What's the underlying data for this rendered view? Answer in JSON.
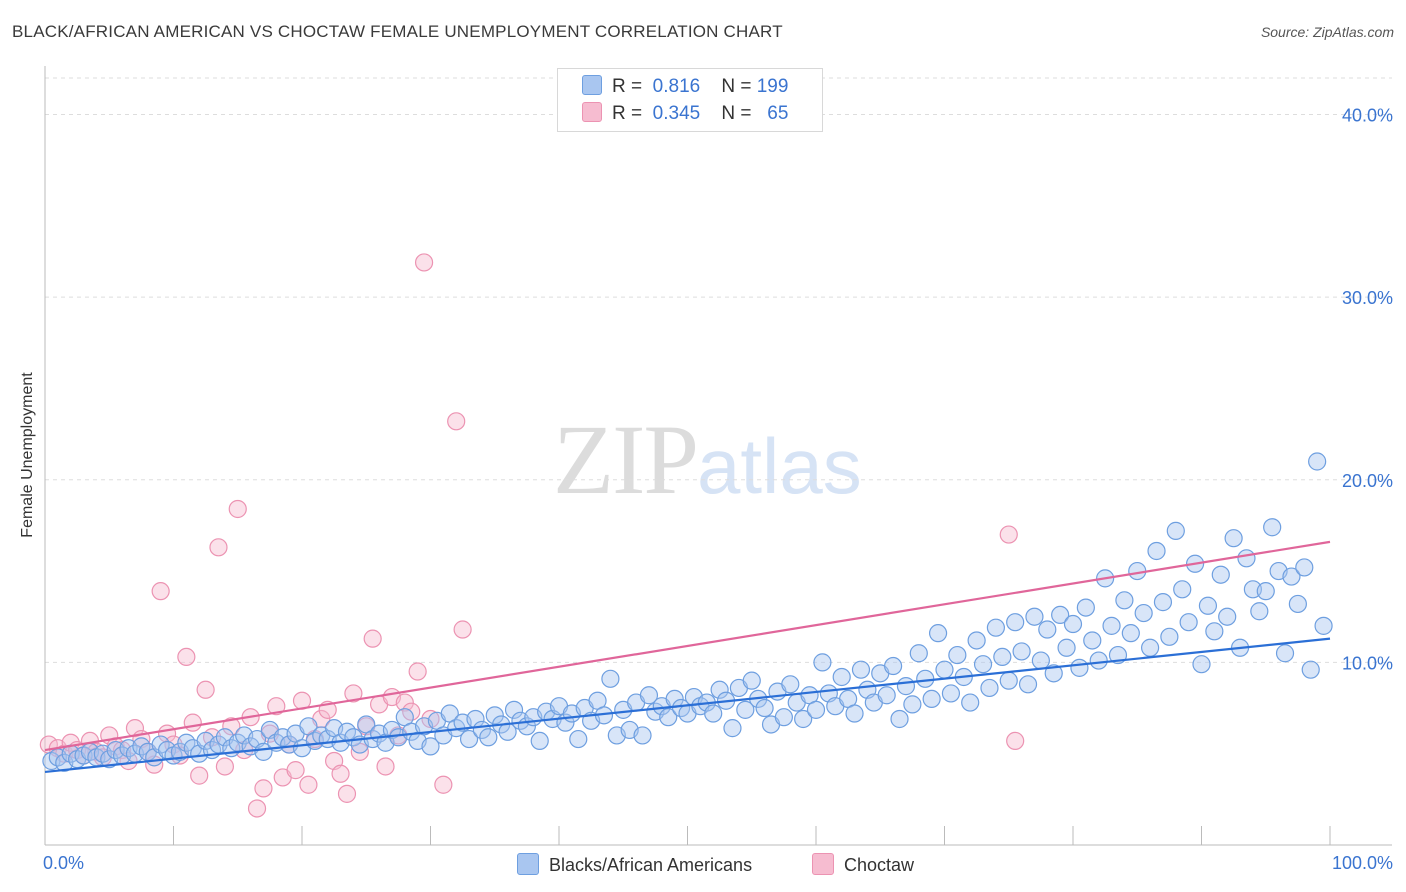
{
  "title": "BLACK/AFRICAN AMERICAN VS CHOCTAW FEMALE UNEMPLOYMENT CORRELATION CHART",
  "source": "Source: ZipAtlas.com",
  "watermark": {
    "zip": "ZIP",
    "atlas": "atlas"
  },
  "legend_top": {
    "rows": [
      {
        "r_label": "R =",
        "r_value": "0.816",
        "n_label": "N =",
        "n_value": "199"
      },
      {
        "r_label": "R =",
        "r_value": "0.345",
        "n_label": "N =",
        "n_value": "65"
      }
    ]
  },
  "colors": {
    "blue_fill": "#a9c6f0",
    "blue_stroke": "#6e9fe0",
    "blue_line": "#2b6fd6",
    "pink_fill": "#f6bcd0",
    "pink_stroke": "#ec93b2",
    "pink_line": "#e0669a",
    "grid": "#dddddd",
    "tick_label": "#3a74d0"
  },
  "chart_data": {
    "type": "scatter",
    "title": "BLACK/AFRICAN AMERICAN VS CHOCTAW FEMALE UNEMPLOYMENT CORRELATION CHART",
    "xlabel": "",
    "ylabel": "Female Unemployment",
    "xlim": [
      0,
      100
    ],
    "ylim": [
      0,
      42
    ],
    "x_tick_labels": [
      "0.0%",
      "100.0%"
    ],
    "y_ticks": [
      10,
      20,
      30,
      40
    ],
    "y_tick_labels": [
      "10.0%",
      "20.0%",
      "30.0%",
      "40.0%"
    ],
    "grid": "horizontal dashed",
    "legend_position": "bottom",
    "series": [
      {
        "name": "Blacks/African Americans",
        "r": 0.816,
        "n": 199,
        "trend": {
          "x": [
            0,
            100
          ],
          "y": [
            4.0,
            11.3
          ]
        },
        "points": [
          [
            0.5,
            4.6
          ],
          [
            1,
            4.8
          ],
          [
            1.5,
            4.5
          ],
          [
            2,
            5.0
          ],
          [
            2.5,
            4.7
          ],
          [
            3,
            4.9
          ],
          [
            3.5,
            5.1
          ],
          [
            4,
            4.8
          ],
          [
            4.5,
            5.0
          ],
          [
            5,
            4.7
          ],
          [
            5.5,
            5.2
          ],
          [
            6,
            4.9
          ],
          [
            6.5,
            5.3
          ],
          [
            7,
            5.0
          ],
          [
            7.5,
            5.4
          ],
          [
            8,
            5.1
          ],
          [
            8.5,
            4.8
          ],
          [
            9,
            5.5
          ],
          [
            9.5,
            5.2
          ],
          [
            10,
            4.9
          ],
          [
            10.5,
            5.1
          ],
          [
            11,
            5.6
          ],
          [
            11.5,
            5.3
          ],
          [
            12,
            5.0
          ],
          [
            12.5,
            5.7
          ],
          [
            13,
            5.2
          ],
          [
            13.5,
            5.5
          ],
          [
            14,
            5.9
          ],
          [
            14.5,
            5.3
          ],
          [
            15,
            5.6
          ],
          [
            15.5,
            6.0
          ],
          [
            16,
            5.4
          ],
          [
            16.5,
            5.8
          ],
          [
            17,
            5.1
          ],
          [
            17.5,
            6.3
          ],
          [
            18,
            5.6
          ],
          [
            18.5,
            5.9
          ],
          [
            19,
            5.5
          ],
          [
            19.5,
            6.1
          ],
          [
            20,
            5.3
          ],
          [
            20.5,
            6.5
          ],
          [
            21,
            5.7
          ],
          [
            21.5,
            6.0
          ],
          [
            22,
            5.8
          ],
          [
            22.5,
            6.4
          ],
          [
            23,
            5.6
          ],
          [
            23.5,
            6.2
          ],
          [
            24,
            5.9
          ],
          [
            24.5,
            5.5
          ],
          [
            25,
            6.6
          ],
          [
            25.5,
            5.8
          ],
          [
            26,
            6.1
          ],
          [
            26.5,
            5.6
          ],
          [
            27,
            6.3
          ],
          [
            27.5,
            5.9
          ],
          [
            28,
            7.0
          ],
          [
            28.5,
            6.2
          ],
          [
            29,
            5.7
          ],
          [
            29.5,
            6.5
          ],
          [
            30,
            5.4
          ],
          [
            30.5,
            6.8
          ],
          [
            31,
            6.0
          ],
          [
            31.5,
            7.2
          ],
          [
            32,
            6.4
          ],
          [
            32.5,
            6.7
          ],
          [
            33,
            5.8
          ],
          [
            33.5,
            6.9
          ],
          [
            34,
            6.3
          ],
          [
            34.5,
            5.9
          ],
          [
            35,
            7.1
          ],
          [
            35.5,
            6.6
          ],
          [
            36,
            6.2
          ],
          [
            36.5,
            7.4
          ],
          [
            37,
            6.8
          ],
          [
            37.5,
            6.5
          ],
          [
            38,
            7.0
          ],
          [
            38.5,
            5.7
          ],
          [
            39,
            7.3
          ],
          [
            39.5,
            6.9
          ],
          [
            40,
            7.6
          ],
          [
            40.5,
            6.7
          ],
          [
            41,
            7.2
          ],
          [
            41.5,
            5.8
          ],
          [
            42,
            7.5
          ],
          [
            42.5,
            6.8
          ],
          [
            43,
            7.9
          ],
          [
            43.5,
            7.1
          ],
          [
            44,
            9.1
          ],
          [
            44.5,
            6.0
          ],
          [
            45,
            7.4
          ],
          [
            45.5,
            6.3
          ],
          [
            46,
            7.8
          ],
          [
            46.5,
            6.0
          ],
          [
            47,
            8.2
          ],
          [
            47.5,
            7.3
          ],
          [
            48,
            7.6
          ],
          [
            48.5,
            7.0
          ],
          [
            49,
            8.0
          ],
          [
            49.5,
            7.5
          ],
          [
            50,
            7.2
          ],
          [
            50.5,
            8.1
          ],
          [
            51,
            7.6
          ],
          [
            51.5,
            7.8
          ],
          [
            52,
            7.2
          ],
          [
            52.5,
            8.5
          ],
          [
            53,
            7.9
          ],
          [
            53.5,
            6.4
          ],
          [
            54,
            8.6
          ],
          [
            54.5,
            7.4
          ],
          [
            55,
            9.0
          ],
          [
            55.5,
            8.0
          ],
          [
            56,
            7.5
          ],
          [
            56.5,
            6.6
          ],
          [
            57,
            8.4
          ],
          [
            57.5,
            7.0
          ],
          [
            58,
            8.8
          ],
          [
            58.5,
            7.8
          ],
          [
            59,
            6.9
          ],
          [
            59.5,
            8.2
          ],
          [
            60,
            7.4
          ],
          [
            60.5,
            10.0
          ],
          [
            61,
            8.3
          ],
          [
            61.5,
            7.6
          ],
          [
            62,
            9.2
          ],
          [
            62.5,
            8.0
          ],
          [
            63,
            7.2
          ],
          [
            63.5,
            9.6
          ],
          [
            64,
            8.5
          ],
          [
            64.5,
            7.8
          ],
          [
            65,
            9.4
          ],
          [
            65.5,
            8.2
          ],
          [
            66,
            9.8
          ],
          [
            66.5,
            6.9
          ],
          [
            67,
            8.7
          ],
          [
            67.5,
            7.7
          ],
          [
            68,
            10.5
          ],
          [
            68.5,
            9.1
          ],
          [
            69,
            8.0
          ],
          [
            69.5,
            11.6
          ],
          [
            70,
            9.6
          ],
          [
            70.5,
            8.3
          ],
          [
            71,
            10.4
          ],
          [
            71.5,
            9.2
          ],
          [
            72,
            7.8
          ],
          [
            72.5,
            11.2
          ],
          [
            73,
            9.9
          ],
          [
            73.5,
            8.6
          ],
          [
            74,
            11.9
          ],
          [
            74.5,
            10.3
          ],
          [
            75,
            9.0
          ],
          [
            75.5,
            12.2
          ],
          [
            76,
            10.6
          ],
          [
            76.5,
            8.8
          ],
          [
            77,
            12.5
          ],
          [
            77.5,
            10.1
          ],
          [
            78,
            11.8
          ],
          [
            78.5,
            9.4
          ],
          [
            79,
            12.6
          ],
          [
            79.5,
            10.8
          ],
          [
            80,
            12.1
          ],
          [
            80.5,
            9.7
          ],
          [
            81,
            13.0
          ],
          [
            81.5,
            11.2
          ],
          [
            82,
            10.1
          ],
          [
            82.5,
            14.6
          ],
          [
            83,
            12.0
          ],
          [
            83.5,
            10.4
          ],
          [
            84,
            13.4
          ],
          [
            84.5,
            11.6
          ],
          [
            85,
            15.0
          ],
          [
            85.5,
            12.7
          ],
          [
            86,
            10.8
          ],
          [
            86.5,
            16.1
          ],
          [
            87,
            13.3
          ],
          [
            87.5,
            11.4
          ],
          [
            88,
            17.2
          ],
          [
            88.5,
            14.0
          ],
          [
            89,
            12.2
          ],
          [
            89.5,
            15.4
          ],
          [
            90,
            9.9
          ],
          [
            90.5,
            13.1
          ],
          [
            91,
            11.7
          ],
          [
            91.5,
            14.8
          ],
          [
            92,
            12.5
          ],
          [
            92.5,
            16.8
          ],
          [
            93,
            10.8
          ],
          [
            93.5,
            15.7
          ],
          [
            94,
            14.0
          ],
          [
            94.5,
            12.8
          ],
          [
            95,
            13.9
          ],
          [
            95.5,
            17.4
          ],
          [
            96,
            15.0
          ],
          [
            96.5,
            10.5
          ],
          [
            97,
            14.7
          ],
          [
            97.5,
            13.2
          ],
          [
            98,
            15.2
          ],
          [
            98.5,
            9.6
          ],
          [
            99,
            21.0
          ],
          [
            99.5,
            12.0
          ]
        ]
      },
      {
        "name": "Choctaw",
        "r": 0.345,
        "n": 65,
        "trend": {
          "x": [
            0,
            100
          ],
          "y": [
            5.2,
            16.6
          ]
        },
        "points": [
          [
            0.3,
            5.5
          ],
          [
            1,
            5.3
          ],
          [
            1.5,
            5.0
          ],
          [
            2,
            5.6
          ],
          [
            2.5,
            5.2
          ],
          [
            3,
            4.9
          ],
          [
            3.5,
            5.7
          ],
          [
            4,
            5.1
          ],
          [
            4.5,
            4.8
          ],
          [
            5,
            6.0
          ],
          [
            5.5,
            5.4
          ],
          [
            6,
            5.2
          ],
          [
            6.5,
            4.6
          ],
          [
            7,
            6.4
          ],
          [
            7.5,
            5.8
          ],
          [
            8,
            5.1
          ],
          [
            8.5,
            4.4
          ],
          [
            9,
            13.9
          ],
          [
            9.5,
            6.1
          ],
          [
            10,
            5.5
          ],
          [
            10.5,
            4.9
          ],
          [
            11,
            10.3
          ],
          [
            11.5,
            6.7
          ],
          [
            12,
            3.8
          ],
          [
            12.5,
            8.5
          ],
          [
            13,
            5.9
          ],
          [
            13.5,
            16.3
          ],
          [
            14,
            4.3
          ],
          [
            14.5,
            6.5
          ],
          [
            15,
            18.4
          ],
          [
            15.5,
            5.2
          ],
          [
            16,
            7.0
          ],
          [
            16.5,
            2.0
          ],
          [
            17,
            3.1
          ],
          [
            17.5,
            6.1
          ],
          [
            18,
            7.6
          ],
          [
            18.5,
            3.7
          ],
          [
            19,
            5.5
          ],
          [
            19.5,
            4.1
          ],
          [
            20,
            7.9
          ],
          [
            20.5,
            3.3
          ],
          [
            21,
            5.8
          ],
          [
            21.5,
            6.9
          ],
          [
            22,
            7.4
          ],
          [
            22.5,
            4.6
          ],
          [
            23,
            3.9
          ],
          [
            23.5,
            2.8
          ],
          [
            24,
            8.3
          ],
          [
            24.5,
            5.1
          ],
          [
            25,
            6.5
          ],
          [
            25.5,
            11.3
          ],
          [
            26,
            7.7
          ],
          [
            26.5,
            4.3
          ],
          [
            27,
            8.1
          ],
          [
            27.5,
            6.0
          ],
          [
            28,
            7.8
          ],
          [
            28.5,
            7.3
          ],
          [
            29,
            9.5
          ],
          [
            29.5,
            31.9
          ],
          [
            30,
            6.9
          ],
          [
            31,
            3.3
          ],
          [
            32,
            23.2
          ],
          [
            32.5,
            11.8
          ],
          [
            75,
            17.0
          ],
          [
            75.5,
            5.7
          ]
        ]
      }
    ]
  },
  "bottom_legend": {
    "items": [
      "Blacks/African Americans",
      "Choctaw"
    ]
  }
}
